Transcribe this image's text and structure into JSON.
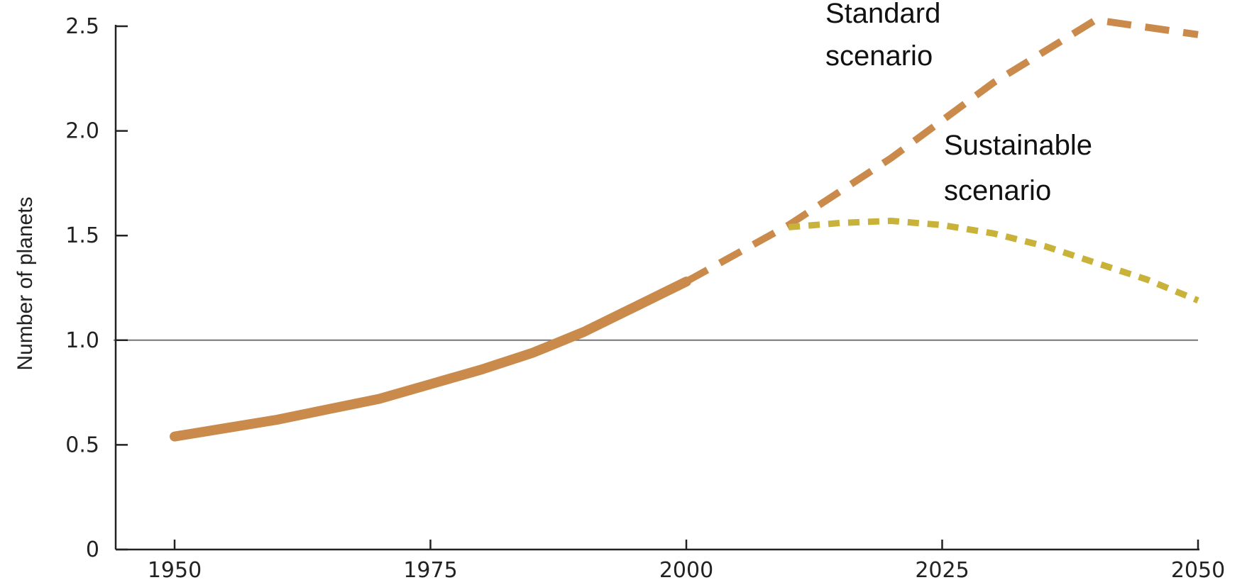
{
  "chart_data": {
    "type": "line",
    "title": "",
    "xlabel": "",
    "ylabel": "Number of planets",
    "xlim": [
      1950,
      2050
    ],
    "ylim": [
      0,
      2.5
    ],
    "x_ticks": [
      "1950",
      "1975",
      "2000",
      "2025",
      "2050"
    ],
    "y_ticks": [
      "0",
      "0.5",
      "1.0",
      "1.5",
      "2.0",
      "2.5"
    ],
    "reference_line": 1.0,
    "grid": false,
    "colors": {
      "historical": "#c98a4b",
      "standard": "#c98a4b",
      "sustainable": "#c9b23a"
    },
    "series": [
      {
        "key": "historical",
        "style": "solid",
        "x": [
          1950,
          1955,
          1960,
          1965,
          1970,
          1975,
          1980,
          1985,
          1990,
          1995,
          2000
        ],
        "y": [
          0.54,
          0.58,
          0.62,
          0.67,
          0.72,
          0.79,
          0.86,
          0.94,
          1.04,
          1.16,
          1.28
        ]
      },
      {
        "key": "standard",
        "name": "Standard scenario",
        "style": "dashed",
        "x": [
          2000,
          2010,
          2020,
          2030,
          2040,
          2050
        ],
        "y": [
          1.28,
          1.55,
          1.87,
          2.23,
          2.53,
          2.46
        ]
      },
      {
        "key": "sustainable",
        "name": "Sustainable scenario",
        "style": "dotted",
        "x": [
          2010,
          2015,
          2020,
          2025,
          2030,
          2035,
          2040,
          2045,
          2050
        ],
        "y": [
          1.54,
          1.56,
          1.57,
          1.55,
          1.51,
          1.45,
          1.37,
          1.29,
          1.19
        ]
      }
    ],
    "annotations": [
      {
        "series": "standard",
        "lines": [
          "Standard",
          "scenario"
        ]
      },
      {
        "series": "sustainable",
        "lines": [
          "Sustainable",
          "scenario"
        ]
      }
    ]
  }
}
